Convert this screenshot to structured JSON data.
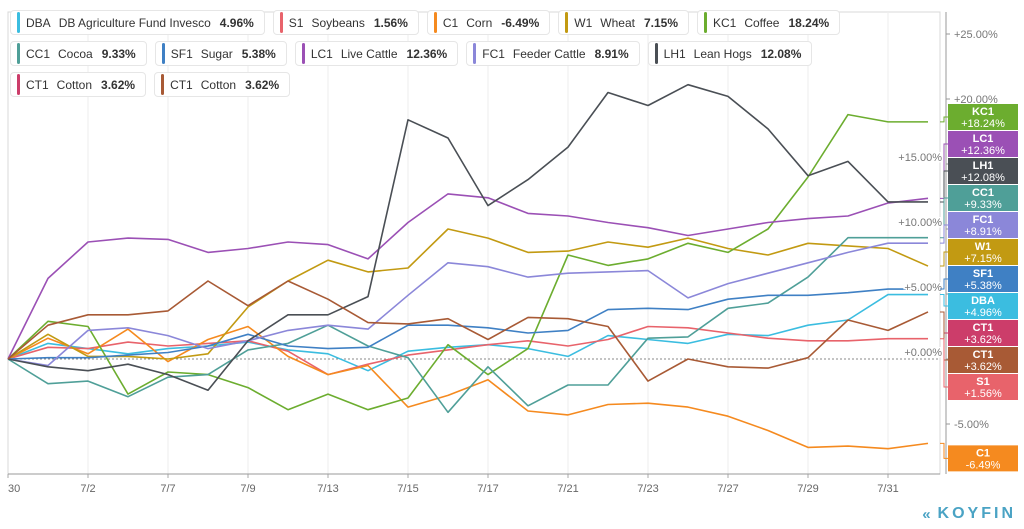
{
  "brand": {
    "name": "KOYFIN",
    "logo_icon": "koyfin-chevron-logo-icon"
  },
  "chart_data": {
    "type": "line",
    "title": "",
    "xlabel": "",
    "ylabel": "",
    "ylim": [
      -7.7,
      27
    ],
    "y_ticks": [
      "+25.00%",
      "+20.00%",
      "+15.00%",
      "+10.00%",
      "+5.00%",
      "+0.00%",
      "-5.00%"
    ],
    "y_tick_values": [
      25,
      20,
      15,
      10,
      5,
      0,
      -5
    ],
    "x_tick_labels": [
      "30",
      "7/2",
      "7/7",
      "7/9",
      "7/13",
      "7/15",
      "7/17",
      "7/21",
      "7/23",
      "7/27",
      "7/29",
      "7/31"
    ],
    "grid": true,
    "legend_position": "top-left",
    "series": [
      {
        "symbol": "DBA",
        "name": "DB Agriculture Fund Invesco",
        "change": "4.96%",
        "tag": "+4.96%",
        "color": "#3bbde0",
        "values": [
          0,
          1.2,
          0.8,
          0.4,
          0.8,
          1.0,
          1.3,
          0.7,
          0.4,
          -0.9,
          0.6,
          0.9,
          1.1,
          0.8,
          0.2,
          1.8,
          1.5,
          1.2,
          1.9,
          1.8,
          2.6,
          3.0,
          4.96,
          4.96
        ]
      },
      {
        "symbol": "S1",
        "name": "Soybeans",
        "change": "1.56%",
        "tag": "+1.56%",
        "color": "#e8636b",
        "values": [
          0,
          0.9,
          0.8,
          1.3,
          1.0,
          1.2,
          1.4,
          0.6,
          -1.2,
          -0.4,
          0.3,
          0.7,
          1.1,
          1.4,
          1.0,
          1.5,
          2.5,
          2.4,
          2.0,
          1.6,
          1.4,
          1.4,
          1.56,
          1.56
        ]
      },
      {
        "symbol": "C1",
        "name": "Corn",
        "change": "-6.49%",
        "tag": "-6.49%",
        "color": "#f58a1f",
        "values": [
          0,
          1.6,
          0.4,
          2.3,
          -0.2,
          1.5,
          2.5,
          0.2,
          -1.2,
          -0.5,
          -3.7,
          -2.8,
          -1.6,
          -4.0,
          -4.3,
          -3.5,
          -3.4,
          -3.7,
          -4.4,
          -5.5,
          -6.8,
          -6.7,
          -6.9,
          -6.49
        ]
      },
      {
        "symbol": "W1",
        "name": "Wheat",
        "change": "7.15%",
        "tag": "+7.15%",
        "color": "#c29a12",
        "values": [
          0,
          1.9,
          0.2,
          0.2,
          0.0,
          0.4,
          4.0,
          6.0,
          7.6,
          6.7,
          7.0,
          10.0,
          9.3,
          8.2,
          8.3,
          9.0,
          8.6,
          9.3,
          8.5,
          8.0,
          8.9,
          8.7,
          8.5,
          7.15
        ]
      },
      {
        "symbol": "KC1",
        "name": "Coffee",
        "change": "18.24%",
        "tag": "+18.24%",
        "color": "#6cad2f",
        "values": [
          0,
          2.9,
          2.5,
          -2.7,
          -1.0,
          -1.2,
          -2.2,
          -3.9,
          -2.7,
          -3.9,
          -3.0,
          1.1,
          -1.2,
          0.8,
          8.0,
          7.2,
          7.7,
          8.9,
          8.2,
          10.0,
          14.0,
          18.8,
          18.24,
          18.24
        ]
      },
      {
        "symbol": "CC1",
        "name": "Cocoa",
        "change": "9.33%",
        "tag": "+9.33%",
        "color": "#4f9f98",
        "values": [
          0,
          -1.9,
          -1.7,
          -2.9,
          -1.4,
          -1.2,
          0.7,
          1.2,
          2.6,
          1.0,
          0.1,
          -4.1,
          -0.6,
          -3.6,
          -2.0,
          -2.0,
          1.6,
          1.7,
          3.9,
          4.3,
          6.3,
          9.33,
          9.33,
          9.33
        ]
      },
      {
        "symbol": "SF1",
        "name": "Sugar",
        "change": "5.38%",
        "tag": "+5.38%",
        "color": "#3f80c4",
        "values": [
          0,
          0.1,
          0.1,
          0.3,
          0.5,
          1.0,
          1.9,
          1.0,
          0.8,
          0.9,
          2.6,
          2.6,
          2.4,
          2.0,
          2.2,
          3.8,
          3.9,
          3.8,
          4.6,
          4.9,
          4.9,
          5.1,
          5.38,
          5.38
        ]
      },
      {
        "symbol": "LC1",
        "name": "Live Cattle",
        "change": "12.36%",
        "tag": "+12.36%",
        "color": "#9b50b5",
        "values": [
          0,
          6.2,
          9.0,
          9.3,
          9.2,
          8.2,
          8.5,
          9.0,
          8.8,
          7.7,
          10.5,
          12.7,
          12.4,
          11.2,
          11.0,
          10.5,
          10.1,
          9.5,
          10.0,
          10.5,
          10.8,
          11.0,
          12.0,
          12.36
        ]
      },
      {
        "symbol": "FC1",
        "name": "Feeder Cattle",
        "change": "8.91%",
        "tag": "+8.91%",
        "color": "#8b87d9",
        "values": [
          0,
          -0.5,
          2.2,
          2.4,
          1.8,
          0.8,
          1.4,
          2.2,
          2.6,
          2.3,
          4.9,
          7.4,
          7.1,
          6.3,
          6.6,
          6.7,
          6.8,
          4.7,
          5.8,
          6.6,
          7.4,
          8.2,
          8.91,
          8.91
        ]
      },
      {
        "symbol": "LH1",
        "name": "Lean Hogs",
        "change": "12.08%",
        "tag": "+12.08%",
        "color": "#4a4f55",
        "values": [
          0,
          -0.6,
          -0.9,
          -0.4,
          -1.2,
          -2.4,
          1.4,
          3.4,
          3.4,
          4.8,
          18.4,
          17.0,
          11.8,
          13.8,
          16.3,
          20.5,
          19.5,
          21.1,
          20.2,
          17.7,
          14.1,
          15.2,
          12.08,
          12.08
        ]
      },
      {
        "symbol": "CT1",
        "name": "Cotton",
        "change": "3.62%",
        "tag": "+3.62%",
        "color": "#cc3d6a",
        "values": null
      },
      {
        "symbol": "CT1",
        "name": "Cotton",
        "change": "3.62%",
        "tag": "+3.62%",
        "color": "#a85a35",
        "values": [
          0,
          2.6,
          3.4,
          3.4,
          3.7,
          6.0,
          4.1,
          6.0,
          4.6,
          2.8,
          2.7,
          3.1,
          1.5,
          3.2,
          3.1,
          2.5,
          -1.7,
          0.0,
          -0.6,
          -0.7,
          0.1,
          3.0,
          2.2,
          3.62
        ]
      }
    ]
  }
}
